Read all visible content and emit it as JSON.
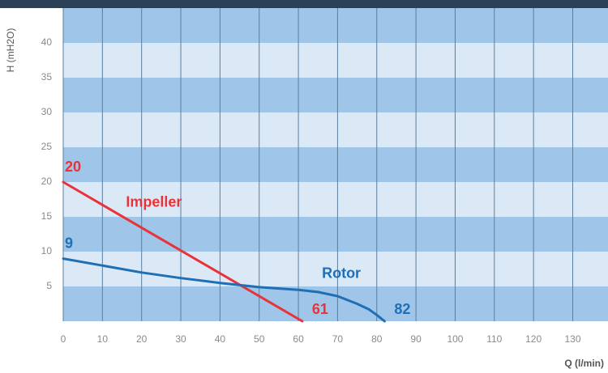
{
  "chart_data": {
    "type": "line",
    "x_label": "Q (l/min)",
    "y_label": "H (mH2O)",
    "xlim": [
      0,
      139
    ],
    "ylim": [
      0,
      45
    ],
    "xticks": [
      0,
      10,
      20,
      30,
      40,
      50,
      60,
      70,
      80,
      90,
      100,
      110,
      120,
      130
    ],
    "yticks": [
      5,
      10,
      15,
      20,
      25,
      30,
      35,
      40
    ],
    "grid": true,
    "band_colors": [
      "#9fc5e8",
      "#dbe9f7"
    ],
    "series": [
      {
        "name": "Impeller",
        "color": "#e8333a",
        "x": [
          0,
          61
        ],
        "values": [
          20,
          0
        ]
      },
      {
        "name": "Rotor",
        "color": "#1f6fb5",
        "x": [
          0,
          10,
          20,
          30,
          40,
          50,
          60,
          65,
          70,
          75,
          78,
          80,
          82
        ],
        "values": [
          9,
          8,
          7,
          6.2,
          5.5,
          4.9,
          4.5,
          4.2,
          3.6,
          2.5,
          1.7,
          0.9,
          0
        ]
      }
    ]
  }
}
